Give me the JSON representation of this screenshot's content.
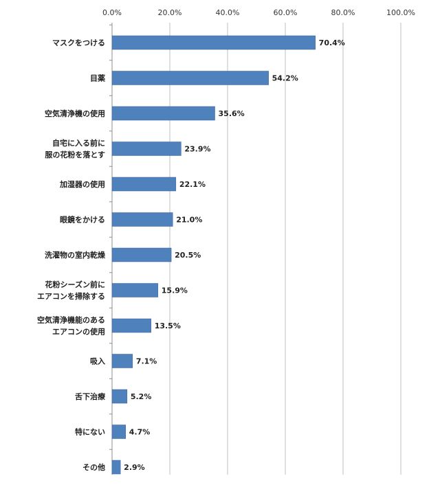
{
  "chart_data": {
    "type": "bar",
    "orientation": "horizontal",
    "categories": [
      [
        "マスクをつける"
      ],
      [
        "目薬"
      ],
      [
        "空気清浄機の使用"
      ],
      [
        "自宅に入る前に",
        "服の花粉を落とす"
      ],
      [
        "加湿器の使用"
      ],
      [
        "眼鏡をかける"
      ],
      [
        "洗濯物の室内乾燥"
      ],
      [
        "花粉シーズン前に",
        "エアコンを掃除する"
      ],
      [
        "空気清浄機能のある",
        "エアコンの使用"
      ],
      [
        "吸入"
      ],
      [
        "舌下治療"
      ],
      [
        "特にない"
      ],
      [
        "その他"
      ]
    ],
    "values": [
      70.4,
      54.2,
      35.6,
      23.9,
      22.1,
      21.0,
      20.5,
      15.9,
      13.5,
      7.1,
      5.2,
      4.7,
      2.9
    ],
    "value_labels": [
      "70.4%",
      "54.2%",
      "35.6%",
      "23.9%",
      "22.1%",
      "21.0%",
      "20.5%",
      "15.9%",
      "13.5%",
      "7.1%",
      "5.2%",
      "4.7%",
      "2.9%"
    ],
    "xlim": [
      0,
      100
    ],
    "x_ticks": [
      0,
      20,
      40,
      60,
      80,
      100
    ],
    "x_tick_labels": [
      "0.0%",
      "20.0%",
      "40.0%",
      "60.0%",
      "80.0%",
      "100.0%"
    ],
    "x_axis_position": "top",
    "grid": true,
    "title": "",
    "xlabel": "",
    "ylabel": "",
    "colors": {
      "bar": "#4F81BD",
      "bar_edge": "#3A6597",
      "grid": "#BFBFBF",
      "frame": "#BFBFBF"
    }
  }
}
